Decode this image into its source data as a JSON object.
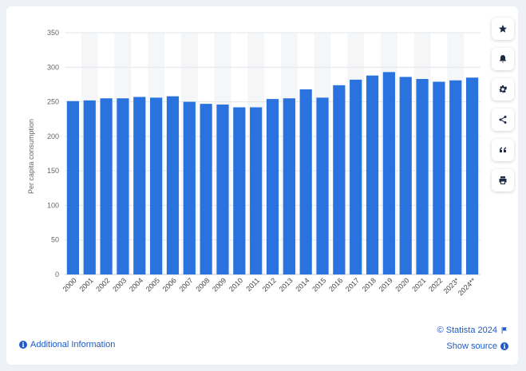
{
  "chart_data": {
    "type": "bar",
    "title": "",
    "xlabel": "",
    "ylabel": "Per capita consumption",
    "ylim": [
      0,
      350
    ],
    "yticks": [
      0,
      50,
      100,
      150,
      200,
      250,
      300,
      350
    ],
    "grid": true,
    "categories": [
      "2000",
      "2001",
      "2002",
      "2003",
      "2004",
      "2005",
      "2006",
      "2007",
      "2008",
      "2009",
      "2010",
      "2011",
      "2012",
      "2013",
      "2014",
      "2015",
      "2016",
      "2017",
      "2018",
      "2019",
      "2020",
      "2021",
      "2022",
      "2023*",
      "2024**"
    ],
    "values": [
      251,
      252,
      255,
      255,
      257,
      256,
      258,
      250,
      247,
      246,
      242,
      242,
      254,
      255,
      268,
      256,
      274,
      282,
      288,
      293,
      286,
      283,
      279,
      281,
      285
    ],
    "bar_color": "#2a72de"
  },
  "footer": {
    "additional_info": "Additional Information",
    "copyright": "© Statista 2024",
    "show_source": "Show source"
  },
  "colors": {
    "link": "#1e5bc6",
    "band": "#f5f6f8",
    "grid": "#e3e6ea"
  },
  "toolbar": {
    "icons": [
      "star-icon",
      "bell-icon",
      "gear-icon",
      "share-icon",
      "quote-icon",
      "print-icon"
    ]
  }
}
